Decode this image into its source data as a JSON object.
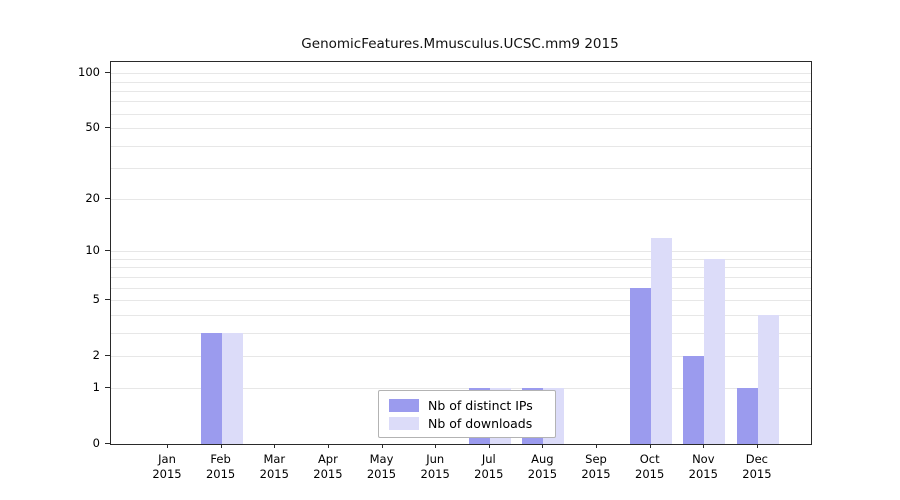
{
  "chart_data": {
    "type": "bar",
    "title": "GenomicFeatures.Mmusculus.UCSC.mm9 2015",
    "xlabel": "",
    "ylabel": "",
    "scale": "log1p",
    "grid": true,
    "legend_position": "bottom-center",
    "ylim": [
      0,
      100
    ],
    "yticks": [
      0,
      1,
      2,
      5,
      10,
      20,
      50,
      100
    ],
    "minor_gridlines": [
      1,
      2,
      3,
      4,
      5,
      6,
      7,
      8,
      9,
      10,
      20,
      30,
      40,
      50,
      60,
      70,
      80,
      90,
      100
    ],
    "categories": [
      "Jan 2015",
      "Feb 2015",
      "Mar 2015",
      "Apr 2015",
      "May 2015",
      "Jun 2015",
      "Jul 2015",
      "Aug 2015",
      "Sep 2015",
      "Oct 2015",
      "Nov 2015",
      "Dec 2015"
    ],
    "series": [
      {
        "name": "Nb of distinct IPs",
        "color": "#9b9bee",
        "values": [
          0,
          3,
          0,
          0,
          0,
          0,
          1,
          1,
          0,
          6,
          2,
          1
        ]
      },
      {
        "name": "Nb of downloads",
        "color": "#dcdcf9",
        "values": [
          0,
          3,
          0,
          0,
          0,
          0,
          1,
          1,
          0,
          12,
          9,
          4
        ]
      }
    ]
  }
}
